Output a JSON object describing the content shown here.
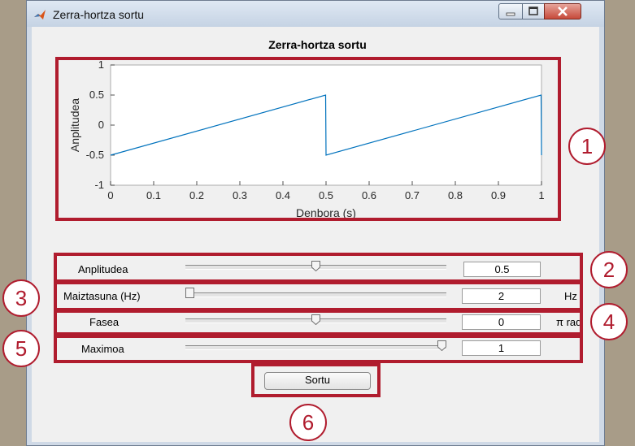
{
  "window": {
    "title": "Zerra-hortza sortu"
  },
  "figure": {
    "title": "Zerra-hortza sortu"
  },
  "chart_data": {
    "type": "line",
    "title": "Zerra-hortza sortu",
    "xlabel": "Denbora (s)",
    "ylabel": "Anplitudea",
    "xlim": [
      0,
      1
    ],
    "ylim": [
      -1,
      1
    ],
    "x_ticks": [
      "0",
      "0.1",
      "0.2",
      "0.3",
      "0.4",
      "0.5",
      "0.6",
      "0.7",
      "0.8",
      "0.9",
      "1"
    ],
    "y_ticks": [
      "1",
      "0.5",
      "0",
      "-0.5",
      "-1"
    ],
    "series": [
      {
        "x": [
          0,
          0.499,
          0.5,
          0.999,
          1.0
        ],
        "y": [
          -0.5,
          0.5,
          -0.5,
          0.5,
          -0.5
        ],
        "color": "#0072bd"
      }
    ]
  },
  "controls": {
    "amplitude": {
      "label": "Anplitudea",
      "value": "0.5",
      "fraction": 0.5
    },
    "frequency": {
      "label": "Maiztasuna (Hz)",
      "value": "2",
      "unit": "Hz",
      "fraction": 0.0
    },
    "phase": {
      "label": "Fasea",
      "value": "0",
      "unit": "π rad",
      "fraction": 0.5
    },
    "maximum": {
      "label": "Maximoa",
      "value": "1",
      "fraction": 1.0
    }
  },
  "button": {
    "label": "Sortu"
  },
  "annotations": [
    "1",
    "2",
    "3",
    "4",
    "5",
    "6"
  ],
  "colors": {
    "annotation": "#b01c2e",
    "line": "#0072bd"
  }
}
